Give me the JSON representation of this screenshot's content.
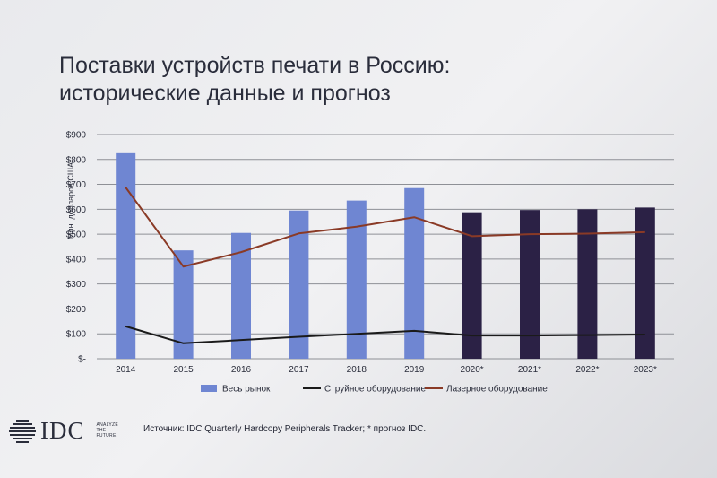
{
  "slide": {
    "title_line1": "Поставки устройств печати в Россию:",
    "title_line2": "исторические данные и прогноз",
    "source": "Источник: IDC Quarterly Hardcopy Peripherals Tracker; * прогноз IDC.",
    "logo_text": "IDC",
    "logo_tagline": [
      "ANALYZE",
      "THE",
      "FUTURE"
    ]
  },
  "chart_data": {
    "type": "bar",
    "ylabel": "Млн. долларов США",
    "ylim": [
      0,
      900
    ],
    "ytick_values": [
      0,
      100,
      200,
      300,
      400,
      500,
      600,
      700,
      800,
      900
    ],
    "ytick_labels": [
      "$-",
      "$100",
      "$200",
      "$300",
      "$400",
      "$500",
      "$600",
      "$700",
      "$800",
      "$900"
    ],
    "grid": true,
    "legend_position": "bottom",
    "categories": [
      "2014",
      "2015",
      "2016",
      "2017",
      "2018",
      "2019",
      "2020*",
      "2021*",
      "2022*",
      "2023*"
    ],
    "series": [
      {
        "name": "Весь рынок",
        "type": "bar",
        "values": [
          825,
          435,
          505,
          595,
          635,
          685,
          588,
          597,
          600,
          607
        ],
        "colors": [
          "#6f86d2",
          "#6f86d2",
          "#6f86d2",
          "#6f86d2",
          "#6f86d2",
          "#6f86d2",
          "#2b2145",
          "#2b2145",
          "#2b2145",
          "#2b2145"
        ]
      },
      {
        "name": "Струйное оборудование",
        "type": "line",
        "color": "#1a1a1a",
        "values": [
          130,
          62,
          75,
          88,
          100,
          112,
          93,
          93,
          95,
          97
        ]
      },
      {
        "name": "Лазерное оборудование",
        "type": "line",
        "color": "#8a3a26",
        "values": [
          688,
          370,
          428,
          503,
          530,
          568,
          492,
          500,
          502,
          508
        ]
      }
    ]
  }
}
